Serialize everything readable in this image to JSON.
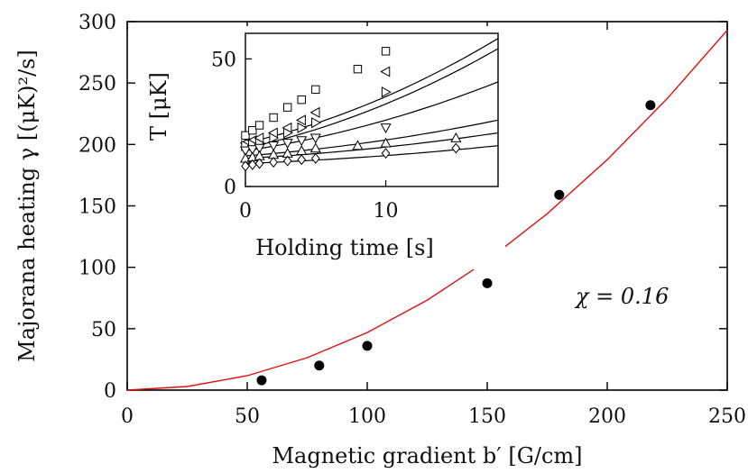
{
  "chart_data": [
    {
      "type": "scatter",
      "xlabel": "Magnetic gradient b′ [G/cm]",
      "ylabel": "Majorana heating γ [(μK)²/s]",
      "xlim": [
        0,
        250
      ],
      "ylim": [
        0,
        300
      ],
      "xticks": [
        0,
        50,
        100,
        150,
        200,
        250
      ],
      "yticks": [
        0,
        50,
        100,
        150,
        200,
        250,
        300
      ],
      "grid": false,
      "annotation": "χ = 0.16",
      "series": [
        {
          "type": "scatter",
          "marker": "filled-circle",
          "color": "#000000",
          "x": [
            56,
            80,
            100,
            150,
            180,
            218
          ],
          "y": [
            8,
            20,
            36,
            87,
            159,
            232
          ]
        },
        {
          "type": "line",
          "color": "#e01010",
          "fit": "quadratic",
          "x": [
            0,
            25,
            50,
            75,
            100,
            125,
            150,
            175,
            200,
            225,
            250
          ],
          "y": [
            0,
            2.9,
            11.7,
            26.4,
            46.9,
            73.3,
            105.5,
            143.6,
            187.6,
            237.4,
            293
          ]
        }
      ]
    },
    {
      "type": "scatter",
      "inset": true,
      "xlabel": "Holding time [s]",
      "ylabel": "T [μK]",
      "xlim": [
        0,
        18
      ],
      "ylim": [
        0,
        60
      ],
      "xticks": [
        0,
        10
      ],
      "yticks": [
        0,
        50
      ],
      "series": [
        {
          "marker": "square",
          "x": [
            0,
            0.5,
            1,
            2,
            3,
            4,
            5,
            8,
            10
          ],
          "y": [
            20,
            22,
            24,
            27,
            31,
            34,
            38,
            46,
            53
          ],
          "fit_y0": 17,
          "fit_y_at_18": 58
        },
        {
          "marker": "triangle-left",
          "x": [
            0,
            0.5,
            1,
            2,
            3,
            4,
            5,
            10
          ],
          "y": [
            17,
            18,
            19,
            21,
            23,
            26,
            29,
            45
          ],
          "fit_y0": 15,
          "fit_y_at_18": 54
        },
        {
          "marker": "triangle-right",
          "x": [
            0,
            0.5,
            1,
            2,
            3,
            4,
            5,
            10
          ],
          "y": [
            16,
            16.5,
            17,
            19,
            21,
            23,
            25,
            37
          ],
          "fit_y0": 14,
          "fit_y_at_18": 41
        },
        {
          "marker": "triangle-down",
          "x": [
            0,
            0.5,
            1,
            2,
            3,
            4,
            5,
            10
          ],
          "y": [
            14,
            14.5,
            15,
            16,
            17,
            18,
            19,
            23
          ],
          "fit_y0": 12,
          "fit_y_at_18": 26
        },
        {
          "marker": "triangle-up",
          "x": [
            0,
            0.5,
            1,
            2,
            3,
            4,
            5,
            8,
            10,
            15
          ],
          "y": [
            11,
            11.5,
            12,
            12.5,
            13,
            14,
            15,
            16,
            17,
            19
          ],
          "fit_y0": 11,
          "fit_y_at_18": 21
        },
        {
          "marker": "diamond",
          "x": [
            0,
            0.5,
            1,
            2,
            3,
            4,
            5,
            10,
            15
          ],
          "y": [
            8,
            8.5,
            9,
            9.5,
            10,
            10.5,
            11,
            13,
            15
          ],
          "fit_y0": 9,
          "fit_y_at_18": 16
        }
      ]
    }
  ]
}
